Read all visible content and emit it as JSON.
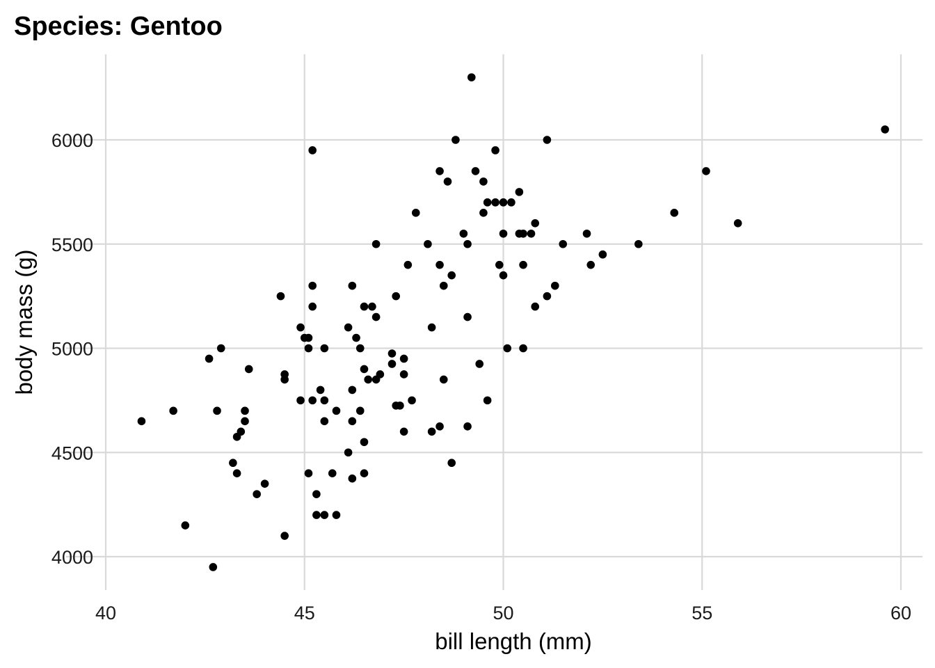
{
  "chart_data": {
    "type": "scatter",
    "title": "Species: Gentoo",
    "xlabel": "bill length (mm)",
    "ylabel": "body mass (g)",
    "xlim": [
      40,
      60
    ],
    "ylim": [
      4000,
      6300
    ],
    "x_ticks": [
      40,
      45,
      50,
      55,
      60
    ],
    "y_ticks": [
      4000,
      4500,
      5000,
      5500,
      6000
    ],
    "grid": true,
    "point_color": "#000000",
    "series": [
      {
        "points": [
          [
            40.9,
            4650
          ],
          [
            41.7,
            4700
          ],
          [
            42.0,
            4150
          ],
          [
            42.6,
            4950
          ],
          [
            42.7,
            3950
          ],
          [
            42.8,
            4700
          ],
          [
            42.9,
            5000
          ],
          [
            43.2,
            4450
          ],
          [
            43.3,
            4400
          ],
          [
            43.3,
            4575
          ],
          [
            43.4,
            4600
          ],
          [
            43.5,
            4650
          ],
          [
            43.5,
            4700
          ],
          [
            43.6,
            4900
          ],
          [
            43.8,
            4300
          ],
          [
            44.0,
            4350
          ],
          [
            44.4,
            5250
          ],
          [
            44.5,
            4850
          ],
          [
            44.5,
            4875
          ],
          [
            44.5,
            4100
          ],
          [
            44.9,
            5100
          ],
          [
            44.9,
            4750
          ],
          [
            45.0,
            5050
          ],
          [
            45.1,
            5050
          ],
          [
            45.1,
            5000
          ],
          [
            45.1,
            4400
          ],
          [
            45.2,
            5950
          ],
          [
            45.2,
            5300
          ],
          [
            45.2,
            5200
          ],
          [
            45.2,
            4750
          ],
          [
            45.3,
            4300
          ],
          [
            45.3,
            4200
          ],
          [
            45.4,
            4800
          ],
          [
            45.5,
            5000
          ],
          [
            45.5,
            4750
          ],
          [
            45.5,
            4650
          ],
          [
            45.5,
            4200
          ],
          [
            45.7,
            4400
          ],
          [
            45.8,
            4700
          ],
          [
            45.8,
            4200
          ],
          [
            46.1,
            5100
          ],
          [
            46.1,
            4500
          ],
          [
            46.2,
            5300
          ],
          [
            46.2,
            4800
          ],
          [
            46.2,
            4650
          ],
          [
            46.2,
            4375
          ],
          [
            46.3,
            5050
          ],
          [
            46.4,
            5000
          ],
          [
            46.4,
            4700
          ],
          [
            46.5,
            5200
          ],
          [
            46.5,
            4900
          ],
          [
            46.5,
            4550
          ],
          [
            46.5,
            4400
          ],
          [
            46.6,
            4850
          ],
          [
            46.7,
            5200
          ],
          [
            46.8,
            5500
          ],
          [
            46.8,
            5150
          ],
          [
            46.8,
            4850
          ],
          [
            46.9,
            4875
          ],
          [
            47.2,
            4975
          ],
          [
            47.2,
            4925
          ],
          [
            47.3,
            5250
          ],
          [
            47.3,
            4725
          ],
          [
            47.4,
            4725
          ],
          [
            47.5,
            4950
          ],
          [
            47.5,
            4875
          ],
          [
            47.5,
            4600
          ],
          [
            47.6,
            5400
          ],
          [
            47.7,
            4750
          ],
          [
            47.8,
            5650
          ],
          [
            48.1,
            5500
          ],
          [
            48.2,
            5100
          ],
          [
            48.2,
            4600
          ],
          [
            48.4,
            5850
          ],
          [
            48.4,
            5400
          ],
          [
            48.4,
            4625
          ],
          [
            48.5,
            5300
          ],
          [
            48.5,
            4850
          ],
          [
            48.6,
            5800
          ],
          [
            48.7,
            5350
          ],
          [
            48.7,
            4450
          ],
          [
            48.8,
            6000
          ],
          [
            49.0,
            5550
          ],
          [
            49.1,
            5500
          ],
          [
            49.1,
            5150
          ],
          [
            49.1,
            4625
          ],
          [
            49.2,
            6300
          ],
          [
            49.3,
            5850
          ],
          [
            49.4,
            4925
          ],
          [
            49.5,
            5800
          ],
          [
            49.5,
            5650
          ],
          [
            49.6,
            5700
          ],
          [
            49.6,
            4750
          ],
          [
            49.8,
            5950
          ],
          [
            49.8,
            5700
          ],
          [
            49.9,
            5400
          ],
          [
            50.0,
            5700
          ],
          [
            50.0,
            5550
          ],
          [
            50.0,
            5350
          ],
          [
            50.1,
            5000
          ],
          [
            50.2,
            5700
          ],
          [
            50.4,
            5750
          ],
          [
            50.4,
            5550
          ],
          [
            50.5,
            5550
          ],
          [
            50.5,
            5400
          ],
          [
            50.5,
            5000
          ],
          [
            50.7,
            5550
          ],
          [
            50.8,
            5600
          ],
          [
            50.8,
            5200
          ],
          [
            51.1,
            6000
          ],
          [
            51.1,
            5250
          ],
          [
            51.3,
            5300
          ],
          [
            51.5,
            5500
          ],
          [
            52.1,
            5550
          ],
          [
            52.2,
            5400
          ],
          [
            52.5,
            5450
          ],
          [
            53.4,
            5500
          ],
          [
            54.3,
            5650
          ],
          [
            55.1,
            5850
          ],
          [
            55.9,
            5600
          ],
          [
            59.6,
            6050
          ]
        ]
      }
    ]
  }
}
